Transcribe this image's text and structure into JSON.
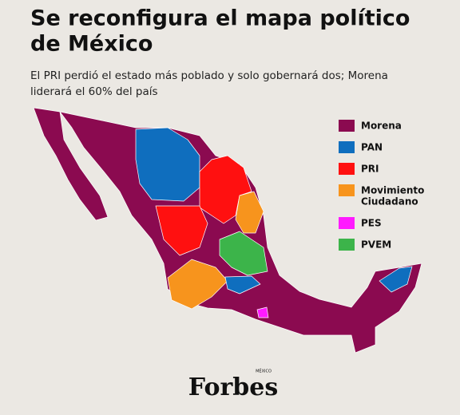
{
  "header": {
    "title_lines": [
      "Se reconfigura el mapa político",
      "de México"
    ],
    "subtitle_lines": [
      "El PRI perdió el estado más poblado y solo gobernará dos; Morena",
      "liderará el 60% del país"
    ]
  },
  "legend": [
    {
      "label_lines": [
        "Morena"
      ],
      "color": "#8b0a50"
    },
    {
      "label_lines": [
        "PAN"
      ],
      "color": "#0f6ebe"
    },
    {
      "label_lines": [
        "PRI"
      ],
      "color": "#ff1010"
    },
    {
      "label_lines": [
        "Movimiento",
        "Ciudadano"
      ],
      "color": "#f7941d"
    },
    {
      "label_lines": [
        "PES"
      ],
      "color": "#ff1aff"
    },
    {
      "label_lines": [
        "PVEM"
      ],
      "color": "#3cb44a"
    }
  ],
  "footer": {
    "logo": "Forbes",
    "logo_sub": "MÉXICO"
  }
}
